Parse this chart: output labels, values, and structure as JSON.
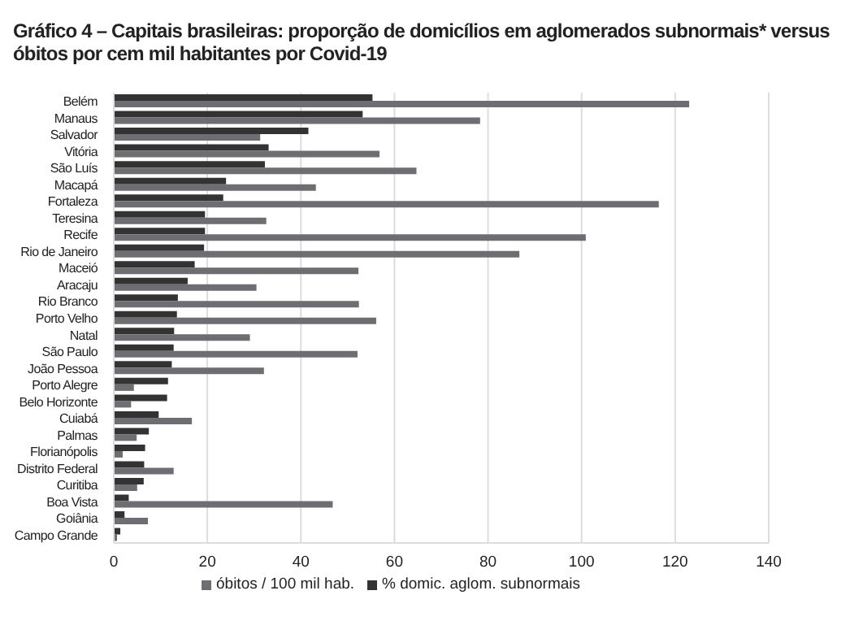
{
  "chart_data": {
    "type": "bar",
    "orientation": "horizontal",
    "title": "Gráfico 4 – Capitais brasileiras: proporção de domicílios em aglomerados subnormais* versus óbitos por cem mil habitantes por Covid-19",
    "categories": [
      "Belém",
      "Manaus",
      "Salvador",
      "Vitória",
      "São Luís",
      "Macapá",
      "Fortaleza",
      "Teresina",
      "Recife",
      "Rio de Janeiro",
      "Maceió",
      "Aracaju",
      "Rio Branco",
      "Porto Velho",
      "Natal",
      "São Paulo",
      "João Pessoa",
      "Porto Alegre",
      "Belo Horizonte",
      "Cuiabá",
      "Palmas",
      "Florianópolis",
      "Distrito Federal",
      "Curitiba",
      "Boa Vista",
      "Goiânia",
      "Campo Grande"
    ],
    "series": [
      {
        "name": "óbitos / 100 mil hab.",
        "color": "#6e6e72",
        "values": [
          123.0,
          78.3,
          31.3,
          56.8,
          64.7,
          43.2,
          116.5,
          32.6,
          100.9,
          86.7,
          52.3,
          30.5,
          52.4,
          56.1,
          29.1,
          52.1,
          32.1,
          4.3,
          3.7,
          16.7,
          4.9,
          1.9,
          12.8,
          5.0,
          46.8,
          7.3,
          0.7
        ]
      },
      {
        "name": "% domic. aglom. subnormais",
        "color": "#333333",
        "values": [
          55.3,
          53.2,
          41.6,
          33.1,
          32.3,
          24.0,
          23.4,
          19.5,
          19.5,
          19.3,
          17.3,
          15.8,
          13.7,
          13.5,
          12.9,
          12.8,
          12.4,
          11.6,
          11.4,
          9.6,
          7.5,
          6.7,
          6.5,
          6.4,
          3.2,
          2.3,
          1.4
        ]
      }
    ],
    "xlim": [
      0,
      140
    ],
    "xticks": [
      0,
      20,
      40,
      60,
      80,
      100,
      120,
      140
    ],
    "grid": "x",
    "legend": "bottom"
  }
}
